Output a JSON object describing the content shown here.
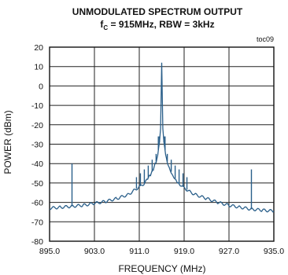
{
  "chart_data": {
    "type": "line",
    "title": "UNMODULATED SPECTRUM OUTPUT",
    "subtitle": {
      "f": "f",
      "c": "C",
      "rest": " = 915MHz, RBW = 3kHz"
    },
    "tag": "toc09",
    "xlabel": "FREQUENCY (MHz)",
    "ylabel": "POWER (dBm)",
    "xlim": [
      895.0,
      935.0
    ],
    "ylim": [
      -80,
      20
    ],
    "xticks": [
      "895.0",
      "903.0",
      "911.0",
      "919.0",
      "927.0",
      "935.0"
    ],
    "xtick_values": [
      895,
      903,
      911,
      919,
      927,
      935
    ],
    "yticks": [
      "20",
      "10",
      "0",
      "-10",
      "-20",
      "-30",
      "-40",
      "-50",
      "-60",
      "-70",
      "-80"
    ],
    "ytick_values": [
      20,
      10,
      0,
      -10,
      -20,
      -30,
      -40,
      -50,
      -60,
      -70,
      -80
    ],
    "grid": true,
    "series": [
      {
        "color": "#2a5f8a",
        "noise_floor": [
          [
            895.0,
            -63.0
          ],
          [
            897.0,
            -62.5
          ],
          [
            899.0,
            -62.0
          ],
          [
            901.0,
            -61.5
          ],
          [
            903.0,
            -60.5
          ],
          [
            905.0,
            -59.5
          ],
          [
            907.0,
            -58.0
          ],
          [
            909.0,
            -56.0
          ],
          [
            910.0,
            -54.0
          ],
          [
            911.0,
            -52.0
          ],
          [
            912.0,
            -50.0
          ],
          [
            912.5,
            -48.0
          ],
          [
            913.0,
            -46.0
          ],
          [
            913.5,
            -43.0
          ],
          [
            914.0,
            -39.0
          ],
          [
            914.3,
            -35.0
          ],
          [
            914.6,
            -29.0
          ],
          [
            914.8,
            -22.0
          ],
          [
            915.0,
            12.0
          ],
          [
            915.2,
            -22.0
          ],
          [
            915.4,
            -29.0
          ],
          [
            915.7,
            -35.0
          ],
          [
            916.0,
            -39.0
          ],
          [
            916.5,
            -43.0
          ],
          [
            917.0,
            -46.0
          ],
          [
            917.5,
            -48.0
          ],
          [
            918.0,
            -50.0
          ],
          [
            919.0,
            -52.5
          ],
          [
            920.0,
            -54.5
          ],
          [
            921.0,
            -56.0
          ],
          [
            923.0,
            -58.0
          ],
          [
            925.0,
            -60.0
          ],
          [
            927.0,
            -61.5
          ],
          [
            929.0,
            -62.5
          ],
          [
            931.0,
            -63.5
          ],
          [
            933.0,
            -64.0
          ],
          [
            935.0,
            -64.5
          ]
        ],
        "spurs": [
          [
            899.0,
            -40.0
          ],
          [
            931.0,
            -43.0
          ],
          [
            910.5,
            -47.0
          ],
          [
            911.2,
            -45.0
          ],
          [
            911.9,
            -43.0
          ],
          [
            912.6,
            -41.0
          ],
          [
            913.3,
            -38.0
          ],
          [
            914.0,
            -35.0
          ],
          [
            914.4,
            -26.0
          ],
          [
            914.6,
            -26.0
          ],
          [
            915.4,
            -26.0
          ],
          [
            915.6,
            -26.0
          ],
          [
            916.0,
            -35.0
          ],
          [
            916.7,
            -38.0
          ],
          [
            917.4,
            -41.0
          ],
          [
            918.1,
            -43.0
          ],
          [
            918.8,
            -45.0
          ],
          [
            919.5,
            -47.0
          ]
        ]
      }
    ]
  }
}
